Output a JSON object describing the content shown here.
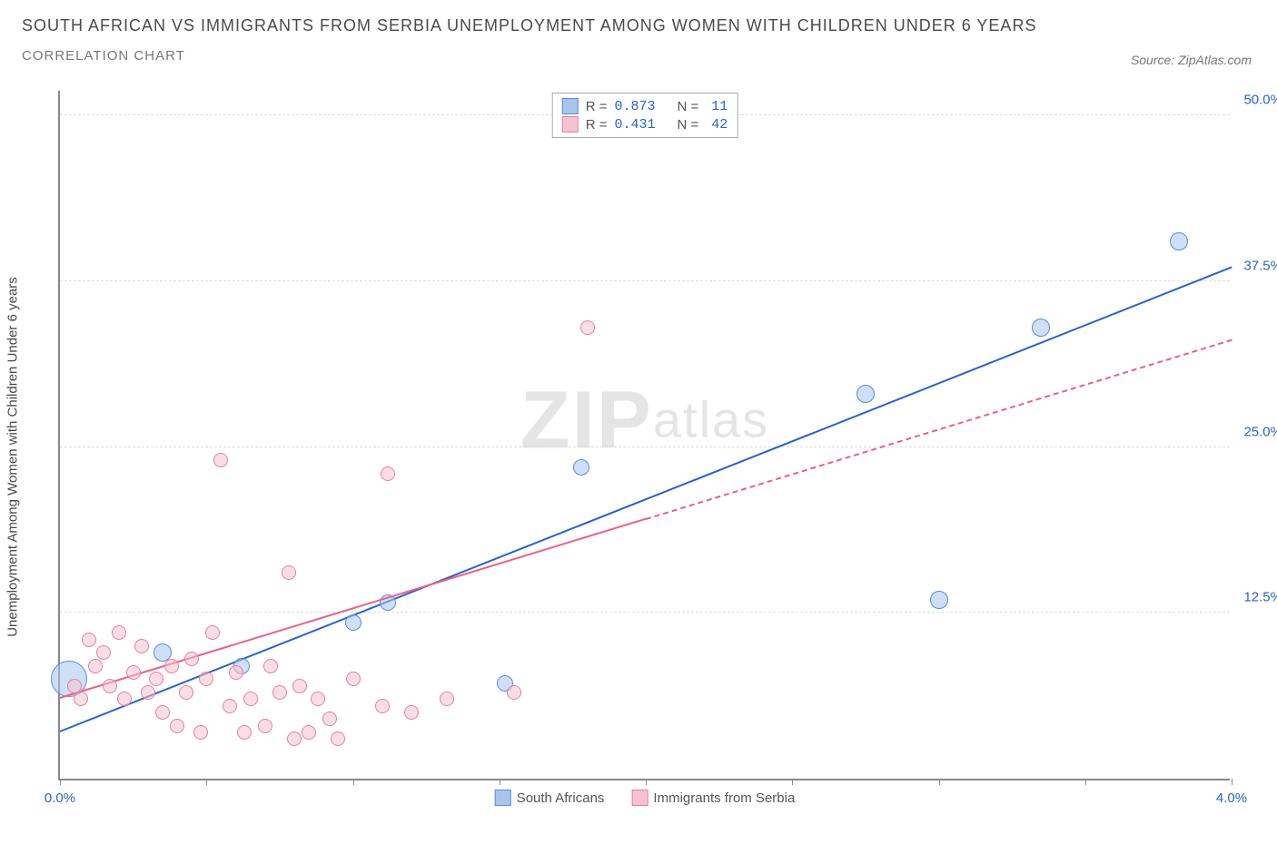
{
  "header": {
    "title": "SOUTH AFRICAN VS IMMIGRANTS FROM SERBIA UNEMPLOYMENT AMONG WOMEN WITH CHILDREN UNDER 6 YEARS",
    "subtitle": "CORRELATION CHART",
    "source": "Source: ZipAtlas.com"
  },
  "chart": {
    "type": "scatter",
    "y_axis_label": "Unemployment Among Women with Children Under 6 years",
    "x_range": [
      0,
      4.0
    ],
    "y_range": [
      0,
      52
    ],
    "x_ticks": [
      0,
      0.5,
      1.0,
      1.5,
      2.0,
      2.5,
      3.0,
      3.5,
      4.0
    ],
    "x_tick_labels": {
      "0": "0.0%",
      "4.0": "4.0%"
    },
    "y_ticks": [
      12.5,
      25.0,
      37.5,
      50.0
    ],
    "y_tick_labels": [
      "12.5%",
      "25.0%",
      "37.5%",
      "50.0%"
    ],
    "background_color": "#ffffff",
    "grid_color": "#dddddd",
    "watermark": "ZIPatlas",
    "legend_top": {
      "rows": [
        {
          "swatch_fill": "#a8c5ec",
          "swatch_border": "#5b8dd6",
          "r_label": "R =",
          "r": "0.873",
          "n_label": "N =",
          "n": "11"
        },
        {
          "swatch_fill": "#f5c2cf",
          "swatch_border": "#e97ea0",
          "r_label": "R =",
          "r": "0.431",
          "n_label": "N =",
          "n": "42"
        }
      ]
    },
    "legend_bottom": {
      "items": [
        {
          "swatch_fill": "#a8c5ec",
          "swatch_border": "#5b8dd6",
          "label": "South Africans"
        },
        {
          "swatch_fill": "#f5c2cf",
          "swatch_border": "#e97ea0",
          "label": "Immigrants from Serbia"
        }
      ]
    },
    "series": [
      {
        "name": "South Africans",
        "fill": "rgba(168,197,236,0.55)",
        "stroke": "#5b8dd6",
        "points": [
          {
            "x": 0.03,
            "y": 7.5,
            "r": 20
          },
          {
            "x": 0.35,
            "y": 9.5,
            "r": 10
          },
          {
            "x": 0.62,
            "y": 8.5,
            "r": 9
          },
          {
            "x": 1.0,
            "y": 11.8,
            "r": 9
          },
          {
            "x": 1.12,
            "y": 13.3,
            "r": 9
          },
          {
            "x": 1.52,
            "y": 7.2,
            "r": 9
          },
          {
            "x": 1.78,
            "y": 23.5,
            "r": 9
          },
          {
            "x": 2.75,
            "y": 29.0,
            "r": 10
          },
          {
            "x": 3.0,
            "y": 13.5,
            "r": 10
          },
          {
            "x": 3.35,
            "y": 34.0,
            "r": 10
          },
          {
            "x": 3.82,
            "y": 40.5,
            "r": 10
          }
        ],
        "trend": {
          "x0": 0.0,
          "y0": 3.5,
          "x1": 4.0,
          "y1": 38.5,
          "color": "#2962c9",
          "width": 2.5,
          "dashed_from": null
        }
      },
      {
        "name": "Immigrants from Serbia",
        "fill": "rgba(245,194,207,0.55)",
        "stroke": "#e97ea0",
        "points": [
          {
            "x": 0.05,
            "y": 7.0,
            "r": 8
          },
          {
            "x": 0.07,
            "y": 6.0,
            "r": 8
          },
          {
            "x": 0.1,
            "y": 10.5,
            "r": 8
          },
          {
            "x": 0.12,
            "y": 8.5,
            "r": 8
          },
          {
            "x": 0.15,
            "y": 9.5,
            "r": 8
          },
          {
            "x": 0.17,
            "y": 7.0,
            "r": 8
          },
          {
            "x": 0.2,
            "y": 11.0,
            "r": 8
          },
          {
            "x": 0.22,
            "y": 6.0,
            "r": 8
          },
          {
            "x": 0.25,
            "y": 8.0,
            "r": 8
          },
          {
            "x": 0.28,
            "y": 10.0,
            "r": 8
          },
          {
            "x": 0.3,
            "y": 6.5,
            "r": 8
          },
          {
            "x": 0.33,
            "y": 7.5,
            "r": 8
          },
          {
            "x": 0.35,
            "y": 5.0,
            "r": 8
          },
          {
            "x": 0.38,
            "y": 8.5,
            "r": 8
          },
          {
            "x": 0.4,
            "y": 4.0,
            "r": 8
          },
          {
            "x": 0.43,
            "y": 6.5,
            "r": 8
          },
          {
            "x": 0.45,
            "y": 9.0,
            "r": 8
          },
          {
            "x": 0.48,
            "y": 3.5,
            "r": 8
          },
          {
            "x": 0.5,
            "y": 7.5,
            "r": 8
          },
          {
            "x": 0.52,
            "y": 11.0,
            "r": 8
          },
          {
            "x": 0.55,
            "y": 24.0,
            "r": 8
          },
          {
            "x": 0.58,
            "y": 5.5,
            "r": 8
          },
          {
            "x": 0.6,
            "y": 8.0,
            "r": 8
          },
          {
            "x": 0.63,
            "y": 3.5,
            "r": 8
          },
          {
            "x": 0.65,
            "y": 6.0,
            "r": 8
          },
          {
            "x": 0.7,
            "y": 4.0,
            "r": 8
          },
          {
            "x": 0.72,
            "y": 8.5,
            "r": 8
          },
          {
            "x": 0.75,
            "y": 6.5,
            "r": 8
          },
          {
            "x": 0.78,
            "y": 15.5,
            "r": 8
          },
          {
            "x": 0.8,
            "y": 3.0,
            "r": 8
          },
          {
            "x": 0.82,
            "y": 7.0,
            "r": 8
          },
          {
            "x": 0.85,
            "y": 3.5,
            "r": 8
          },
          {
            "x": 0.88,
            "y": 6.0,
            "r": 8
          },
          {
            "x": 0.92,
            "y": 4.5,
            "r": 8
          },
          {
            "x": 0.95,
            "y": 3.0,
            "r": 8
          },
          {
            "x": 1.0,
            "y": 7.5,
            "r": 8
          },
          {
            "x": 1.1,
            "y": 5.5,
            "r": 8
          },
          {
            "x": 1.12,
            "y": 23.0,
            "r": 8
          },
          {
            "x": 1.2,
            "y": 5.0,
            "r": 8
          },
          {
            "x": 1.32,
            "y": 6.0,
            "r": 8
          },
          {
            "x": 1.55,
            "y": 6.5,
            "r": 8
          },
          {
            "x": 1.8,
            "y": 34.0,
            "r": 8
          }
        ],
        "trend": {
          "x0": 0.0,
          "y0": 6.0,
          "x1": 4.0,
          "y1": 33.0,
          "color": "#ec5f86",
          "width": 2,
          "dashed_from": 2.0
        }
      }
    ]
  }
}
